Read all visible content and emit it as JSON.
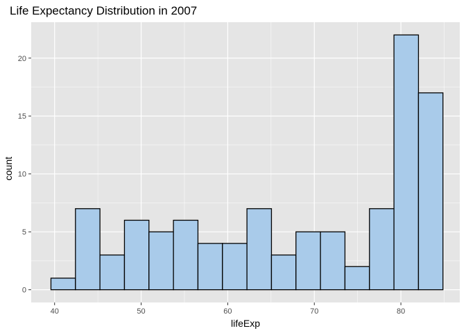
{
  "chart_data": {
    "type": "bar",
    "title": "Life Expectancy Distribution in 2007",
    "xlabel": "lifeExp",
    "ylabel": "count",
    "bins": [
      {
        "from": 39.58,
        "to": 42.41,
        "count": 1
      },
      {
        "from": 42.41,
        "to": 45.24,
        "count": 7
      },
      {
        "from": 45.24,
        "to": 48.07,
        "count": 3
      },
      {
        "from": 48.07,
        "to": 50.9,
        "count": 6
      },
      {
        "from": 50.9,
        "to": 53.73,
        "count": 5
      },
      {
        "from": 53.73,
        "to": 56.56,
        "count": 6
      },
      {
        "from": 56.56,
        "to": 59.39,
        "count": 4
      },
      {
        "from": 59.39,
        "to": 62.22,
        "count": 4
      },
      {
        "from": 62.22,
        "to": 65.05,
        "count": 7
      },
      {
        "from": 65.05,
        "to": 67.88,
        "count": 3
      },
      {
        "from": 67.88,
        "to": 70.71,
        "count": 5
      },
      {
        "from": 70.71,
        "to": 73.54,
        "count": 5
      },
      {
        "from": 73.54,
        "to": 76.37,
        "count": 2
      },
      {
        "from": 76.37,
        "to": 79.2,
        "count": 7
      },
      {
        "from": 79.2,
        "to": 82.03,
        "count": 22
      },
      {
        "from": 82.03,
        "to": 84.86,
        "count": 17
      }
    ],
    "xticks": [
      "40",
      "50",
      "60",
      "70",
      "80"
    ],
    "yticks": [
      "0",
      "5",
      "10",
      "15",
      "20"
    ],
    "xlim": [
      37.3,
      86.8
    ],
    "ylim": [
      -1.1,
      23.1
    ],
    "grid": true,
    "legend": "none",
    "colors": {
      "panel": "#e5e5e5",
      "grid_major": "#ffffff",
      "bar_fill": "#a9cbea",
      "bar_stroke": "#000000"
    }
  }
}
